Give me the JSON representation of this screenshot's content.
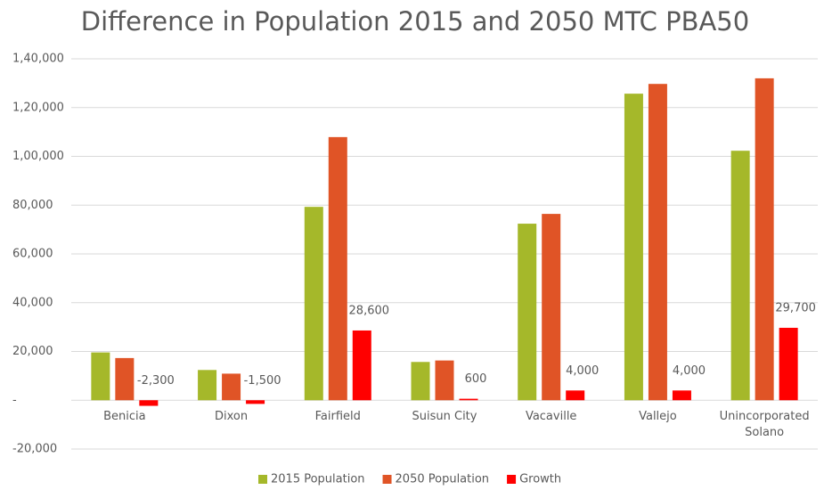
{
  "chart_data": {
    "type": "bar",
    "title": "Difference in Population 2015 and 2050 MTC PBA50",
    "categories": [
      "Benicia",
      "Dixon",
      "Fairfield",
      "Suisun City",
      "Vacaville",
      "Vallejo",
      "Unincorporated Solano"
    ],
    "series": [
      {
        "name": "2015 Population",
        "color": "#a5b82a",
        "values": [
          19600,
          12400,
          79300,
          15700,
          72400,
          125700,
          102300
        ]
      },
      {
        "name": "2050 Population",
        "color": "#e05426",
        "values": [
          17300,
          10900,
          107900,
          16300,
          76400,
          129700,
          132000
        ]
      },
      {
        "name": "Growth",
        "color": "#ff0000",
        "values": [
          -2300,
          -1500,
          28600,
          600,
          4000,
          4000,
          29700
        ],
        "value_labels": [
          "-2,300",
          "-1,500",
          "28,600",
          "600",
          "4,000",
          "4,000",
          "29,700"
        ]
      }
    ],
    "ylim": [
      -20000,
      140000
    ],
    "yticks": [
      {
        "value": -20000,
        "label": "-20,000"
      },
      {
        "value": 0,
        "label": "-"
      },
      {
        "value": 20000,
        "label": "20,000"
      },
      {
        "value": 40000,
        "label": "40,000"
      },
      {
        "value": 60000,
        "label": "60,000"
      },
      {
        "value": 80000,
        "label": "80,000"
      },
      {
        "value": 100000,
        "label": "1,00,000"
      },
      {
        "value": 120000,
        "label": "1,20,000"
      },
      {
        "value": 140000,
        "label": "1,40,000"
      }
    ],
    "grid": true,
    "legend": "bottom"
  }
}
